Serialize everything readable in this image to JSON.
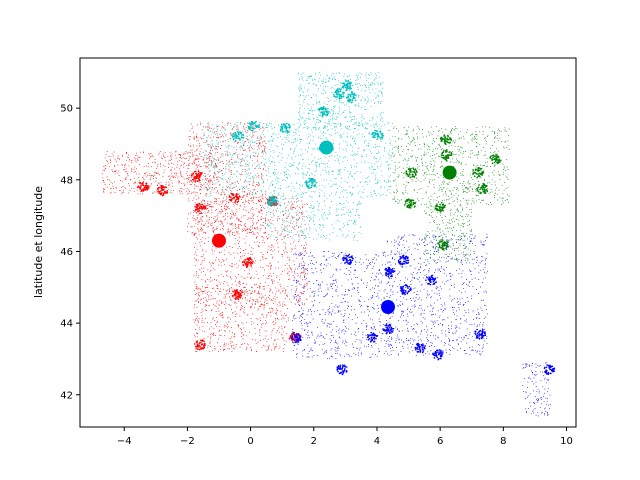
{
  "chart_data": {
    "type": "scatter",
    "title": "",
    "xlabel": "",
    "ylabel": "latitude et longitude",
    "xlim": [
      -5.4,
      10.3
    ],
    "ylim": [
      41.1,
      51.4
    ],
    "xticks": [
      -4,
      -2,
      0,
      2,
      4,
      6,
      8,
      10
    ],
    "yticks": [
      42,
      44,
      46,
      48,
      50
    ],
    "grid": false,
    "legend": "none",
    "series": [
      {
        "color": "#ff0000",
        "regions": [
          {
            "x": [
              -4.7,
              -1.0
            ],
            "y": [
              47.6,
              48.8
            ],
            "n": 500
          },
          {
            "x": [
              -2.0,
              0.5
            ],
            "y": [
              46.5,
              49.6
            ],
            "n": 700
          },
          {
            "x": [
              -1.8,
              1.8
            ],
            "y": [
              44.5,
              47.5
            ],
            "n": 900
          },
          {
            "x": [
              -1.8,
              1.2
            ],
            "y": [
              43.2,
              45.0
            ],
            "n": 500
          }
        ],
        "clusters": [
          [
            -1.6,
            43.4
          ],
          [
            -0.4,
            44.8
          ],
          [
            1.4,
            43.6
          ],
          [
            -1.6,
            47.2
          ],
          [
            -0.5,
            47.5
          ],
          [
            0.7,
            47.4
          ],
          [
            -2.8,
            47.7
          ],
          [
            -3.4,
            47.8
          ],
          [
            -1.7,
            48.1
          ],
          [
            -0.1,
            45.7
          ]
        ],
        "center": [
          -1.0,
          46.3
        ]
      },
      {
        "color": "#00bfbf",
        "regions": [
          {
            "x": [
              -1.5,
              4.5
            ],
            "y": [
              47.5,
              49.6
            ],
            "n": 1100
          },
          {
            "x": [
              1.5,
              4.2
            ],
            "y": [
              49.4,
              51.0
            ],
            "n": 500
          },
          {
            "x": [
              0.5,
              3.5
            ],
            "y": [
              46.3,
              47.5
            ],
            "n": 300
          }
        ],
        "clusters": [
          [
            2.35,
            48.86
          ],
          [
            3.06,
            50.63
          ],
          [
            3.2,
            50.3
          ],
          [
            1.1,
            49.44
          ],
          [
            0.1,
            49.5
          ],
          [
            4.03,
            49.26
          ],
          [
            2.8,
            50.4
          ],
          [
            1.9,
            47.9
          ],
          [
            0.7,
            47.4
          ],
          [
            2.3,
            49.9
          ],
          [
            -0.4,
            49.2
          ]
        ],
        "center": [
          2.4,
          48.9
        ]
      },
      {
        "color": "#008000",
        "regions": [
          {
            "x": [
              4.5,
              8.2
            ],
            "y": [
              47.3,
              49.5
            ],
            "n": 700
          },
          {
            "x": [
              5.5,
              7.0
            ],
            "y": [
              45.7,
              47.3
            ],
            "n": 250
          }
        ],
        "clusters": [
          [
            6.18,
            49.12
          ],
          [
            6.2,
            48.69
          ],
          [
            7.75,
            48.58
          ],
          [
            7.34,
            47.75
          ],
          [
            6.0,
            47.24
          ],
          [
            5.04,
            47.32
          ],
          [
            6.1,
            46.2
          ],
          [
            5.1,
            48.2
          ],
          [
            7.2,
            48.2
          ]
        ],
        "center": [
          6.3,
          48.2
        ]
      },
      {
        "color": "#0000ff",
        "regions": [
          {
            "x": [
              1.3,
              4.5
            ],
            "y": [
              43.0,
              46.0
            ],
            "n": 700
          },
          {
            "x": [
              4.3,
              7.5
            ],
            "y": [
              43.1,
              46.5
            ],
            "n": 800
          },
          {
            "x": [
              8.6,
              9.5
            ],
            "y": [
              41.4,
              42.9
            ],
            "n": 120
          }
        ],
        "clusters": [
          [
            4.84,
            45.76
          ],
          [
            5.37,
            43.3
          ],
          [
            5.72,
            45.19
          ],
          [
            7.26,
            43.7
          ],
          [
            3.87,
            43.61
          ],
          [
            4.4,
            45.43
          ],
          [
            3.08,
            45.78
          ],
          [
            1.44,
            43.6
          ],
          [
            5.93,
            43.12
          ],
          [
            4.36,
            43.84
          ],
          [
            2.9,
            42.7
          ],
          [
            4.9,
            44.93
          ],
          [
            9.45,
            42.7
          ]
        ],
        "center": [
          4.35,
          44.45
        ]
      }
    ]
  }
}
